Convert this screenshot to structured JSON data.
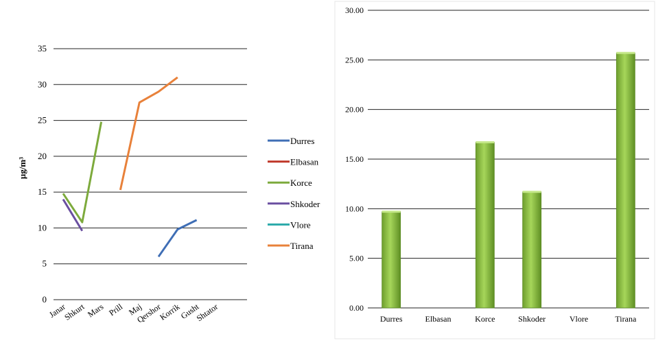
{
  "chart_data": [
    {
      "type": "line",
      "ylabel": "µg/m³",
      "ylim": [
        0,
        35
      ],
      "yticks": [
        0,
        5,
        10,
        15,
        20,
        25,
        30,
        35
      ],
      "categories": [
        "Janar",
        "Shkurt",
        "Mars",
        "Prill",
        "Maj",
        "Qershor",
        "Korrik",
        "Gusht",
        "Shtator"
      ],
      "grid": true,
      "legend_position": "right",
      "series": [
        {
          "name": "Durres",
          "color": "#3F6EB5",
          "values": [
            null,
            null,
            null,
            null,
            null,
            6.0,
            9.8,
            11.1,
            null
          ]
        },
        {
          "name": "Elbasan",
          "color": "#C0392B",
          "values": [
            null,
            null,
            null,
            null,
            null,
            null,
            null,
            null,
            null
          ]
        },
        {
          "name": "Korce",
          "color": "#7DAA3C",
          "values": [
            14.8,
            10.8,
            24.8,
            null,
            null,
            null,
            null,
            null,
            null
          ]
        },
        {
          "name": "Shkoder",
          "color": "#6A4FA0",
          "values": [
            14.0,
            9.6,
            null,
            null,
            null,
            null,
            null,
            null,
            null
          ]
        },
        {
          "name": "Vlore",
          "color": "#2AA9A9",
          "values": [
            null,
            null,
            null,
            null,
            null,
            null,
            null,
            null,
            null
          ]
        },
        {
          "name": "Tirana",
          "color": "#E8813A",
          "values": [
            null,
            null,
            null,
            15.3,
            27.5,
            29.0,
            31.0,
            null,
            null
          ]
        }
      ]
    },
    {
      "type": "bar",
      "ylim": [
        0,
        30
      ],
      "yticks": [
        "0.00",
        "5.00",
        "10.00",
        "15.00",
        "20.00",
        "25.00",
        "30.00"
      ],
      "categories": [
        "Durres",
        "Elbasan",
        "Korce",
        "Shkoder",
        "Vlore",
        "Tirana"
      ],
      "values": [
        9.7,
        0,
        16.7,
        11.7,
        0,
        25.7
      ],
      "grid": true,
      "bar_color": "#8DC63F"
    }
  ]
}
